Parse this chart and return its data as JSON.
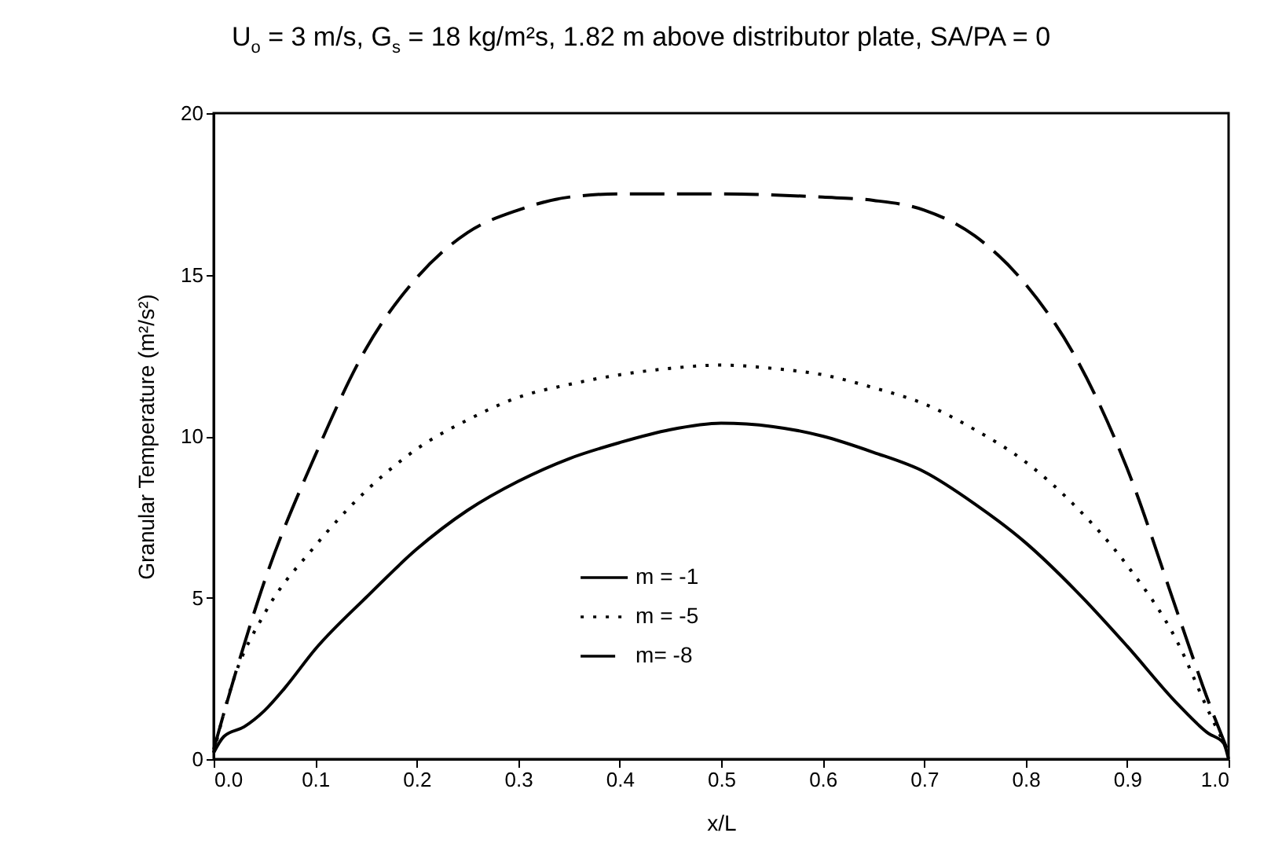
{
  "chart_data": {
    "type": "line",
    "title": "U$_{o}$ = 3 m/s, G$_{s}$ = 18 kg/m²s, 1.82 m above distributor plate, SA/PA = 0",
    "xlabel": "x/L",
    "ylabel": "Granular Temperature (m²/s²)",
    "xlim": [
      0,
      1
    ],
    "xticks": [
      "0.0",
      0.1,
      0.2,
      0.3,
      0.4,
      0.5,
      0.6,
      0.7,
      0.8,
      0.9,
      "1.0"
    ],
    "ylim": [
      0,
      20
    ],
    "yticks": [
      0,
      5,
      10,
      15,
      20
    ],
    "grid": false,
    "legend": "bottom",
    "marker": "none",
    "series": [
      {
        "name": "m = -1",
        "color": "#000000",
        "line_style": "solid",
        "x": [
          0,
          0.01,
          0.03,
          0.05,
          0.07,
          0.1,
          0.15,
          0.2,
          0.25,
          0.3,
          0.35,
          0.4,
          0.45,
          0.5,
          0.55,
          0.6,
          0.65,
          0.7,
          0.75,
          0.8,
          0.85,
          0.9,
          0.95,
          0.98,
          0.995,
          1
        ],
        "values": [
          0.2,
          0.7,
          1.0,
          1.5,
          2.2,
          3.4,
          5.0,
          6.5,
          7.7,
          8.6,
          9.3,
          9.8,
          10.2,
          10.4,
          10.3,
          10.0,
          9.5,
          8.9,
          7.9,
          6.7,
          5.2,
          3.5,
          1.7,
          0.8,
          0.5,
          0
        ]
      },
      {
        "name": "m = -5",
        "color": "#000000",
        "line_style": "dotted",
        "x": [
          0,
          0.02,
          0.05,
          0.1,
          0.15,
          0.2,
          0.25,
          0.3,
          0.35,
          0.4,
          0.45,
          0.5,
          0.55,
          0.6,
          0.65,
          0.7,
          0.75,
          0.8,
          0.85,
          0.9,
          0.95,
          0.98,
          1
        ],
        "values": [
          0.2,
          2.5,
          4.5,
          6.6,
          8.3,
          9.6,
          10.5,
          11.2,
          11.6,
          11.9,
          12.1,
          12.2,
          12.1,
          11.9,
          11.5,
          11.0,
          10.2,
          9.2,
          7.8,
          6.0,
          3.6,
          1.5,
          0.2
        ]
      },
      {
        "name": "m= -8",
        "color": "#000000",
        "line_style": "dashed",
        "x": [
          0,
          0.02,
          0.05,
          0.1,
          0.15,
          0.2,
          0.25,
          0.3,
          0.35,
          0.4,
          0.5,
          0.6,
          0.65,
          0.7,
          0.75,
          0.8,
          0.85,
          0.9,
          0.95,
          0.98,
          1
        ],
        "values": [
          0.3,
          2.5,
          5.5,
          9.4,
          12.7,
          14.9,
          16.3,
          17.0,
          17.4,
          17.5,
          17.5,
          17.4,
          17.3,
          17.0,
          16.2,
          14.7,
          12.4,
          9.0,
          4.5,
          1.8,
          0.2
        ]
      }
    ]
  }
}
